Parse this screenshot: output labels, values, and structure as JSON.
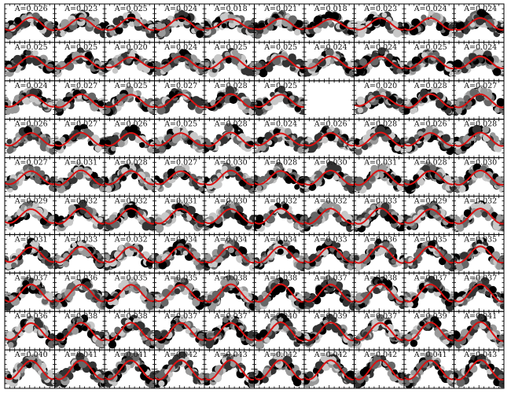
{
  "chart_data": {
    "type": "scatter",
    "layout": {
      "rows": 10,
      "cols": 10
    },
    "panel_label_prefix": "A=",
    "blank_panels": [
      26
    ],
    "sinusoid_fit_color": "#dd1111",
    "point_colors": [
      "#000000",
      "#333333",
      "#666666",
      "#999999",
      "#c8c8c8"
    ],
    "axes_color": "#000000",
    "amplitudes": [
      "0.026",
      "0.023",
      "0.025",
      "0.024",
      "0.018",
      "0.021",
      "0.018",
      "0.023",
      "0.024",
      "0.024",
      "0.025",
      "0.025",
      "0.020",
      "0.024",
      "0.025",
      "0.025",
      "0.024",
      "0.024",
      "0.025",
      "0.024",
      "0.024",
      "0.027",
      "0.025",
      "0.027",
      "0.028",
      "0.025",
      "",
      "0.020",
      "0.028",
      "0.027",
      "0.026",
      "0.027",
      "0.026",
      "0.025",
      "0.028",
      "0.024",
      "0.026",
      "0.028",
      "0.026",
      "0.028",
      "0.027",
      "0.031",
      "0.028",
      "0.027",
      "0.030",
      "0.028",
      "0.030",
      "0.031",
      "0.028",
      "0.030",
      "0.029",
      "0.032",
      "0.032",
      "0.031",
      "0.030",
      "0.032",
      "0.032",
      "0.033",
      "0.029",
      "0.032",
      "0.031",
      "0.033",
      "0.032",
      "0.034",
      "0.034",
      "0.034",
      "0.033",
      "0.036",
      "0.035",
      "0.035",
      "0.037",
      "0.036",
      "0.035",
      "0.035",
      "0.038",
      "0.038",
      "0.037",
      "0.038",
      "0.037",
      "0.037",
      "0.036",
      "0.038",
      "0.038",
      "0.037",
      "0.037",
      "0.040",
      "0.039",
      "0.037",
      "0.039",
      "0.041",
      "0.040",
      "0.041",
      "0.041",
      "0.042",
      "0.043",
      "0.042",
      "0.042",
      "0.042",
      "0.041",
      "0.043"
    ]
  }
}
